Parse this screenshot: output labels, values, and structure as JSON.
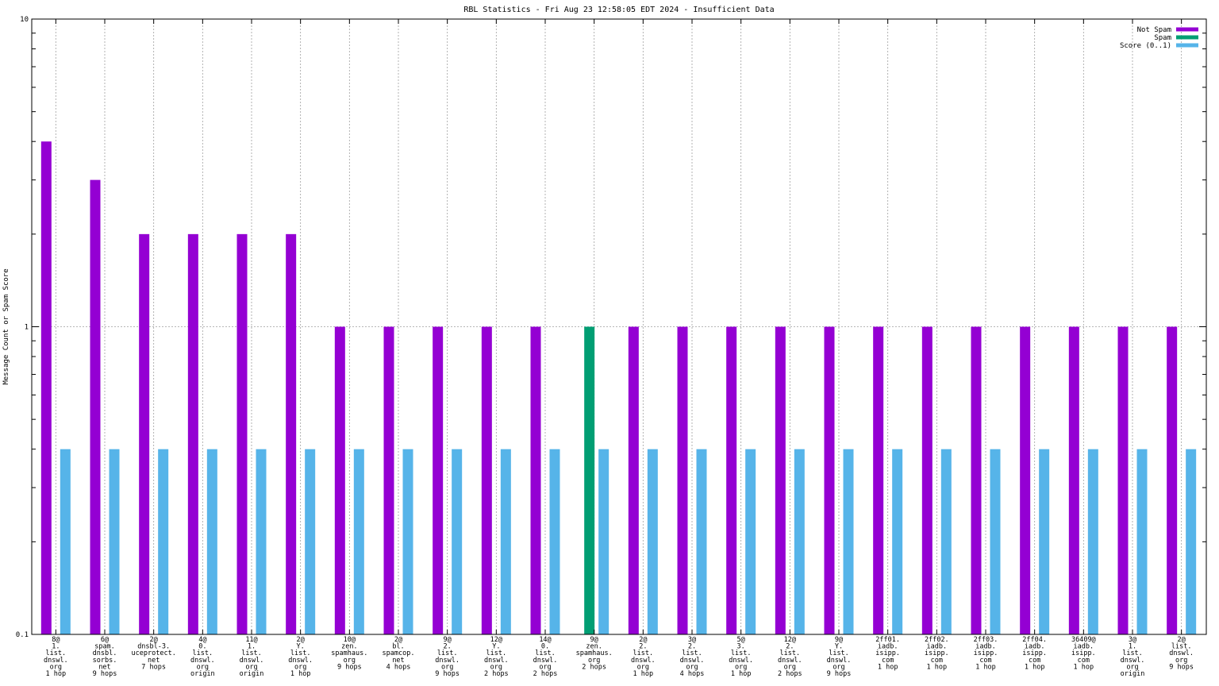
{
  "chart_data": {
    "type": "bar",
    "title": "RBL Statistics - Fri Aug 23 12:58:05 EDT 2024 - Insufficient Data",
    "ylabel": "Message Count or Spam Score",
    "xlabel": "",
    "yscale": "log",
    "ylim": [
      0.1,
      10
    ],
    "yticks": [
      "0.1",
      "1",
      "10"
    ],
    "grid": true,
    "legend": "top-right",
    "categories": [
      [
        "8@",
        "1.",
        "list.",
        "dnswl.",
        "org",
        "1 hop"
      ],
      [
        "6@",
        "spam.",
        "dnsbl.",
        "sorbs.",
        "net",
        "9 hops"
      ],
      [
        "2@",
        "dnsbl-3.",
        "uceprotect.",
        "net",
        "7 hops"
      ],
      [
        "4@",
        "0.",
        "list.",
        "dnswl.",
        "org",
        "origin"
      ],
      [
        "11@",
        "1.",
        "list.",
        "dnswl.",
        "org",
        "origin"
      ],
      [
        "2@",
        "Y.",
        "list.",
        "dnswl.",
        "org",
        "1 hop"
      ],
      [
        "10@",
        "zen.",
        "spamhaus.",
        "org",
        "9 hops"
      ],
      [
        "2@",
        "bl.",
        "spamcop.",
        "net",
        "4 hops"
      ],
      [
        "9@",
        "2.",
        "list.",
        "dnswl.",
        "org",
        "9 hops"
      ],
      [
        "12@",
        "Y.",
        "list.",
        "dnswl.",
        "org",
        "2 hops"
      ],
      [
        "14@",
        "0.",
        "list.",
        "dnswl.",
        "org",
        "2 hops"
      ],
      [
        "9@",
        "zen.",
        "spamhaus.",
        "org",
        "2 hops"
      ],
      [
        "2@",
        "2.",
        "list.",
        "dnswl.",
        "org",
        "1 hop"
      ],
      [
        "3@",
        "2.",
        "list.",
        "dnswl.",
        "org",
        "4 hops"
      ],
      [
        "5@",
        "3.",
        "list.",
        "dnswl.",
        "org",
        "1 hop"
      ],
      [
        "12@",
        "2.",
        "list.",
        "dnswl.",
        "org",
        "2 hops"
      ],
      [
        "9@",
        "Y.",
        "list.",
        "dnswl.",
        "org",
        "9 hops"
      ],
      [
        "2ff01.",
        "iadb.",
        "isipp.",
        "com",
        "1 hop"
      ],
      [
        "2ff02.",
        "iadb.",
        "isipp.",
        "com",
        "1 hop"
      ],
      [
        "2ff03.",
        "iadb.",
        "isipp.",
        "com",
        "1 hop"
      ],
      [
        "2ff04.",
        "iadb.",
        "isipp.",
        "com",
        "1 hop"
      ],
      [
        "36409@",
        "iadb.",
        "isipp.",
        "com",
        "1 hop"
      ],
      [
        "3@",
        "1.",
        "list.",
        "dnswl.",
        "org",
        "origin"
      ],
      [
        "2@",
        "list.",
        "dnswl.",
        "org",
        "9 hops"
      ]
    ],
    "series": [
      {
        "name": "Not Spam",
        "color": "#9400d3",
        "values": [
          4,
          3,
          2,
          2,
          2,
          2,
          1,
          1,
          1,
          1,
          1,
          0,
          1,
          1,
          1,
          1,
          1,
          1,
          1,
          1,
          1,
          1,
          1,
          1
        ]
      },
      {
        "name": "Spam",
        "color": "#009e73",
        "values": [
          0,
          0,
          0,
          0,
          0,
          0,
          0,
          0,
          0,
          0,
          0,
          1,
          0,
          0,
          0,
          0,
          0,
          0,
          0,
          0,
          0,
          0,
          0,
          0
        ]
      },
      {
        "name": "Score (0..1)",
        "color": "#56b4e9",
        "values": [
          0.4,
          0.4,
          0.4,
          0.4,
          0.4,
          0.4,
          0.4,
          0.4,
          0.4,
          0.4,
          0.4,
          0.4,
          0.4,
          0.4,
          0.4,
          0.4,
          0.4,
          0.4,
          0.4,
          0.4,
          0.4,
          0.4,
          0.4,
          0.4
        ]
      }
    ]
  }
}
